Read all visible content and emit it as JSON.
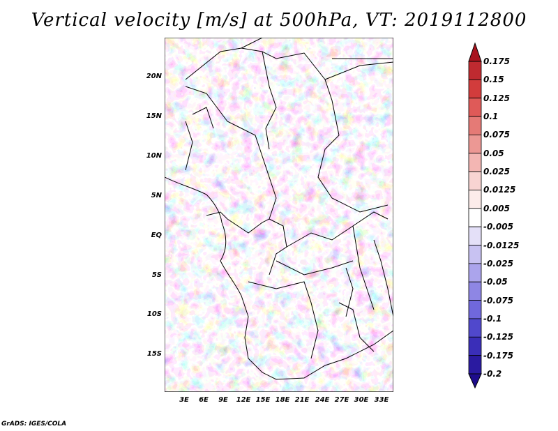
{
  "title": "Vertical velocity [m/s] at 500hPa, VT: 2019112800",
  "footer": "GrADS: IGES/COLA",
  "map": {
    "lat_labels": [
      "20N",
      "15N",
      "10N",
      "5N",
      "EQ",
      "5S",
      "10S",
      "15S"
    ],
    "lon_labels": [
      "3E",
      "6E",
      "9E",
      "12E",
      "15E",
      "18E",
      "21E",
      "24E",
      "27E",
      "30E",
      "33E"
    ]
  },
  "colorbar": {
    "levels": [
      "0.175",
      "0.15",
      "0.125",
      "0.1",
      "0.075",
      "0.05",
      "0.025",
      "0.0125",
      "0.005",
      "-0.005",
      "-0.0125",
      "-0.025",
      "-0.05",
      "-0.075",
      "-0.1",
      "-0.125",
      "-0.175",
      "-0.2"
    ],
    "colors": [
      "#a8141e",
      "#bf2a30",
      "#d23c3c",
      "#df5a58",
      "#e57a76",
      "#ec9894",
      "#f3b6b3",
      "#f8d4d2",
      "#fcecea",
      "#ffffff",
      "#e4e0f8",
      "#c8c2f2",
      "#aba4ec",
      "#8e86e4",
      "#7068dc",
      "#5048cc",
      "#3a2eb8",
      "#2a1aa0",
      "#1e0c8c"
    ]
  }
}
